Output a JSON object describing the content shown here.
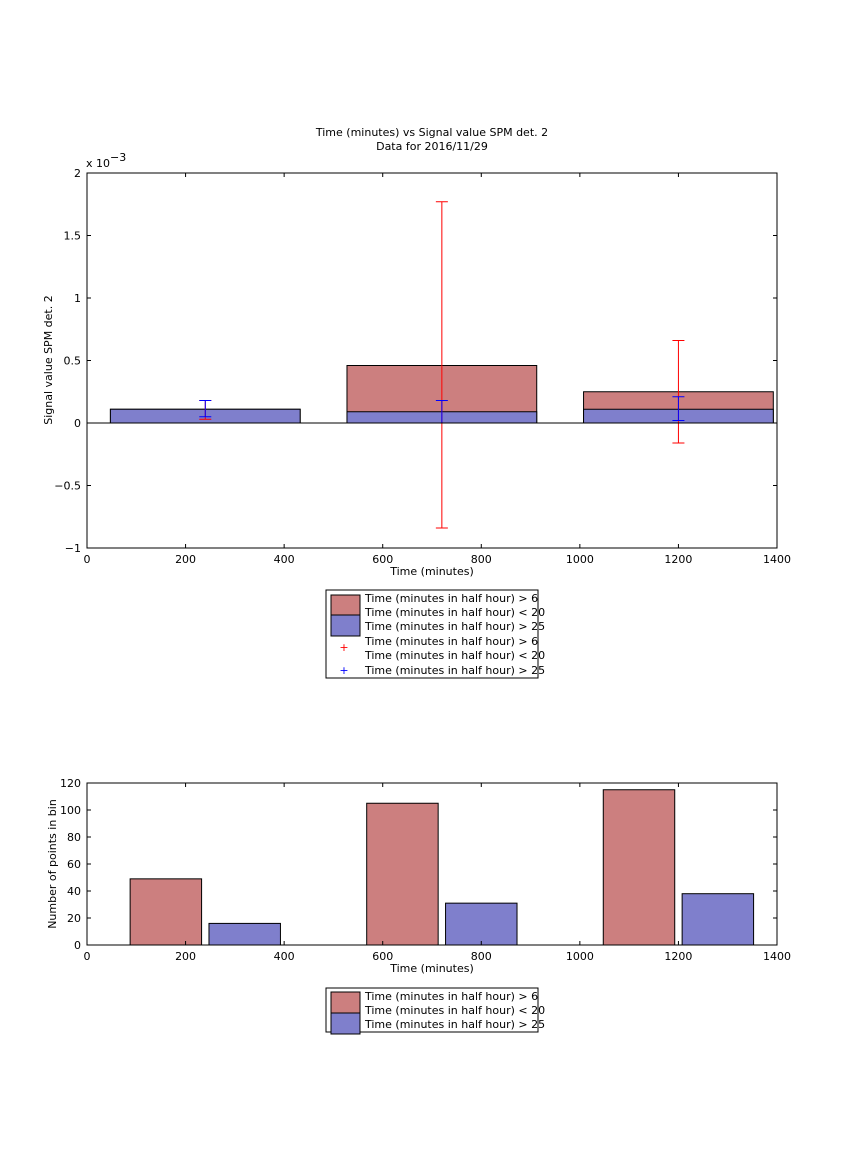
{
  "chart_data": [
    {
      "type": "bar",
      "title": "Time (minutes) vs Signal value SPM det. 2",
      "subtitle": "Data for 2016/11/29",
      "xlabel": "Time (minutes)",
      "ylabel": "Signal value SPM det. 2",
      "y_exponent_label": "x 10",
      "y_exponent": "−3",
      "xlim": [
        0,
        1400
      ],
      "ylim": [
        -1,
        2
      ],
      "xticks": [
        "0",
        "200",
        "400",
        "600",
        "800",
        "1000",
        "1200",
        "1400"
      ],
      "yticks": [
        "−1",
        "−0.5",
        "0",
        "0.5",
        "1",
        "1.5",
        "2"
      ],
      "grid": false,
      "legend_position": "below",
      "categories": [
        240,
        720,
        1200
      ],
      "bar_width": 385,
      "series": [
        {
          "name": "Time (minutes in half hour) > 6",
          "name_line2": "Time (minutes in half hour) < 20",
          "color": "#cc7f7f",
          "values": [
            0.11,
            0.46,
            0.25
          ],
          "error_low": [
            0.03,
            -0.84,
            -0.16
          ],
          "error_high": [
            0.18,
            1.77,
            0.66
          ],
          "error_color": "#ff0000"
        },
        {
          "name": "Time (minutes in half hour) > 25",
          "color": "#7f7fcc",
          "values": [
            0.11,
            0.09,
            0.11
          ],
          "error_low": [
            0.05,
            0.0,
            0.02
          ],
          "error_high": [
            0.18,
            0.18,
            0.21
          ],
          "error_color": "#0000ff"
        }
      ]
    },
    {
      "type": "bar",
      "xlabel": "Time (minutes)",
      "ylabel": "Number of points in bin",
      "xlim": [
        0,
        1400
      ],
      "ylim": [
        0,
        120
      ],
      "xticks": [
        "0",
        "200",
        "400",
        "600",
        "800",
        "1000",
        "1200",
        "1400"
      ],
      "yticks": [
        "0",
        "20",
        "40",
        "60",
        "80",
        "100",
        "120"
      ],
      "grid": false,
      "legend_position": "below",
      "categories": [
        240,
        720,
        1200
      ],
      "bar_width": 145,
      "series": [
        {
          "name": "Time (minutes in half hour) > 6",
          "name_line2": "Time (minutes in half hour) < 20",
          "color": "#cc7f7f",
          "values": [
            49,
            105,
            115
          ]
        },
        {
          "name": "Time (minutes in half hour) > 25",
          "color": "#7f7fcc",
          "values": [
            16,
            31,
            38
          ]
        }
      ]
    }
  ]
}
